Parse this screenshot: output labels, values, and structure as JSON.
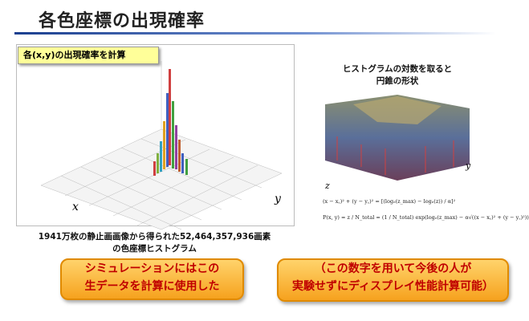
{
  "title": "各色座標の出現確率",
  "left_panel": {
    "label": "各(x,y)の出現確率を計算",
    "x_axis": "x",
    "y_axis": "y",
    "caption": [
      "1941万枚の静止画画像から得られた52,464,357,936画素",
      "の色座標ヒストグラム"
    ]
  },
  "right_panel": {
    "caption": [
      "ヒストグラムの対数を取ると",
      "円錐の形状"
    ],
    "z_axis": "z",
    "y_axis": "y",
    "formulas": [
      "(x − x꜀)² + (y − y꜀)² = [(logₑ(z_max) − logₑ(z)) / α]²",
      "P(x, y) = z / N_total = (1 / N_total) exp(logₑ(z_max) − α√((x − x꜀)² + (y − y꜀)²))"
    ]
  },
  "notes": [
    [
      "シミュレーションにはこの",
      "生データを計算に使用した"
    ],
    [
      "（この数字を用いて今後の人が",
      "実験せずにディスプレイ性能計算可能）"
    ]
  ]
}
